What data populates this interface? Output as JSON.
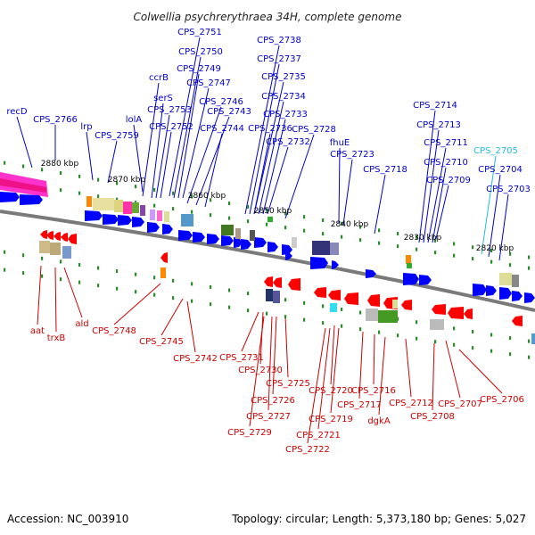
{
  "title": "Colwellia psychrerythraea 34H, complete genome",
  "footer": {
    "accession": "Accession: NC_003910",
    "topology": "Topology: circular; Length: 5,373,180 bp; Genes: 5,027"
  },
  "colors": {
    "forward_gene": "#0000ff",
    "reverse_gene": "#ff0000",
    "forward_label": "#0000cc",
    "reverse_label": "#cc0000",
    "highlight_label": "#22bbdd",
    "backbone": "#7a7a7a",
    "tick": "#2a8a2a"
  },
  "scale_ticks": [
    "2880 kbp",
    "2870 kbp",
    "2860 kbp",
    "2850 kbp",
    "2840 kbp",
    "2830 kbp",
    "2820 kbp"
  ],
  "labels_top": [
    "recD",
    "CPS_2766",
    "lrp",
    "CPS_2759",
    "lolA",
    "ccrB",
    "serS",
    "CPS_2753",
    "CPS_2752",
    "CPS_2751",
    "CPS_2750",
    "CPS_2749",
    "CPS_2747",
    "CPS_2746",
    "CPS_2743",
    "CPS_2744",
    "CPS_2738",
    "CPS_2737",
    "CPS_2735",
    "CPS_2734",
    "CPS_2733",
    "CPS_2736",
    "CPS_2732",
    "CPS_2728",
    "fhuE",
    "CPS_2723",
    "CPS_2718",
    "CPS_2714",
    "CPS_2713",
    "CPS_2711",
    "CPS_2710",
    "CPS_2709",
    "CPS_2705",
    "CPS_2704",
    "CPS_2703"
  ],
  "labels_bottom": [
    "aat",
    "trxB",
    "ald",
    "CPS_2748",
    "CPS_2745",
    "CPS_2742",
    "CPS_2731",
    "CPS_2730",
    "CPS_2725",
    "CPS_2726",
    "CPS_2727",
    "CPS_2729",
    "CPS_2720",
    "CPS_2719",
    "CPS_2721",
    "CPS_2722",
    "CPS_2717",
    "CPS_2716",
    "dgkA",
    "CPS_2712",
    "CPS_2708",
    "CPS_2707",
    "CPS_2706"
  ]
}
